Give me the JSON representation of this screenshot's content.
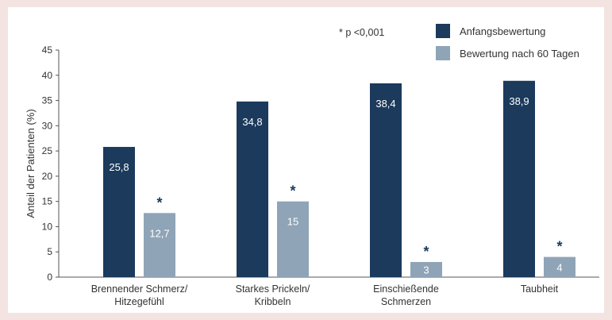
{
  "chart_data": {
    "type": "bar",
    "categories": [
      [
        "Brennender Schmerz/",
        "Hitzegefühl"
      ],
      [
        "Starkes Prickeln/",
        "Kribbeln"
      ],
      [
        "Einschießende",
        "Schmerzen"
      ],
      [
        "Taubheit"
      ]
    ],
    "series": [
      {
        "name": "Anfangsbewertung",
        "color": "#1b3a5c",
        "values": [
          25.8,
          34.8,
          38.4,
          38.9
        ],
        "value_labels": [
          "25,8",
          "34,8",
          "38,4",
          "38,9"
        ]
      },
      {
        "name": "Bewertung nach 60 Tagen",
        "color": "#8fa4b7",
        "values": [
          12.7,
          15,
          3,
          4
        ],
        "value_labels": [
          "12,7",
          "15",
          "3",
          "4"
        ]
      }
    ],
    "significance_markers": [
      "*",
      "*",
      "*",
      "*"
    ],
    "note": "* p <0,001",
    "ylabel": "Anteil der Patienten (%)",
    "ylim": [
      0,
      45
    ],
    "yticks": [
      0,
      5,
      10,
      15,
      20,
      25,
      30,
      35,
      40,
      45
    ],
    "grid": false,
    "legend_position": "top-right"
  }
}
